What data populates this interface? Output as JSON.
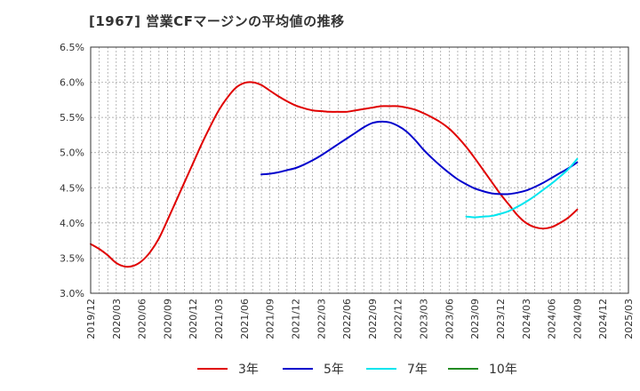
{
  "title": "[1967]  営業CFマージンの平均値の推移",
  "chart_data": {
    "type": "line",
    "title": "[1967]  営業CFマージンの平均値の推移",
    "xlabel": "",
    "ylabel": "",
    "x_ticks": [
      "2019/12",
      "2020/03",
      "2020/06",
      "2020/09",
      "2020/12",
      "2021/03",
      "2021/06",
      "2021/09",
      "2021/12",
      "2022/03",
      "2022/06",
      "2022/09",
      "2022/12",
      "2023/03",
      "2023/06",
      "2023/09",
      "2023/12",
      "2024/03",
      "2024/06",
      "2024/09",
      "2024/12",
      "2025/03"
    ],
    "y_ticks": [
      "3.0%",
      "3.5%",
      "4.0%",
      "4.5%",
      "5.0%",
      "5.5%",
      "6.0%",
      "6.5%"
    ],
    "ylim": [
      3.0,
      6.5
    ],
    "y_unit": "%",
    "grid": true,
    "legend_position": "bottom",
    "series": [
      {
        "name": "3年",
        "color": "#e00000",
        "points": [
          [
            "2019/12",
            3.7
          ],
          [
            "2020/01",
            3.63
          ],
          [
            "2020/02",
            3.54
          ],
          [
            "2020/03",
            3.43
          ],
          [
            "2020/04",
            3.38
          ],
          [
            "2020/05",
            3.39
          ],
          [
            "2020/06",
            3.46
          ],
          [
            "2020/07",
            3.59
          ],
          [
            "2020/08",
            3.78
          ],
          [
            "2020/09",
            4.04
          ],
          [
            "2020/10",
            4.31
          ],
          [
            "2020/11",
            4.58
          ],
          [
            "2020/12",
            4.85
          ],
          [
            "2021/01",
            5.12
          ],
          [
            "2021/02",
            5.37
          ],
          [
            "2021/03",
            5.6
          ],
          [
            "2021/04",
            5.78
          ],
          [
            "2021/05",
            5.92
          ],
          [
            "2021/06",
            5.99
          ],
          [
            "2021/07",
            6.0
          ],
          [
            "2021/08",
            5.96
          ],
          [
            "2021/09",
            5.88
          ],
          [
            "2021/10",
            5.8
          ],
          [
            "2021/11",
            5.73
          ],
          [
            "2021/12",
            5.67
          ],
          [
            "2022/01",
            5.63
          ],
          [
            "2022/02",
            5.6
          ],
          [
            "2022/03",
            5.59
          ],
          [
            "2022/04",
            5.58
          ],
          [
            "2022/05",
            5.58
          ],
          [
            "2022/06",
            5.58
          ],
          [
            "2022/07",
            5.6
          ],
          [
            "2022/08",
            5.62
          ],
          [
            "2022/09",
            5.64
          ],
          [
            "2022/10",
            5.66
          ],
          [
            "2022/11",
            5.66
          ],
          [
            "2022/12",
            5.66
          ],
          [
            "2023/01",
            5.64
          ],
          [
            "2023/02",
            5.61
          ],
          [
            "2023/03",
            5.56
          ],
          [
            "2023/04",
            5.5
          ],
          [
            "2023/05",
            5.43
          ],
          [
            "2023/06",
            5.34
          ],
          [
            "2023/07",
            5.22
          ],
          [
            "2023/08",
            5.08
          ],
          [
            "2023/09",
            4.92
          ],
          [
            "2023/10",
            4.75
          ],
          [
            "2023/11",
            4.58
          ],
          [
            "2023/12",
            4.41
          ],
          [
            "2024/01",
            4.26
          ],
          [
            "2024/02",
            4.11
          ],
          [
            "2024/03",
            4.0
          ],
          [
            "2024/04",
            3.94
          ],
          [
            "2024/05",
            3.92
          ],
          [
            "2024/06",
            3.94
          ],
          [
            "2024/07",
            4.0
          ],
          [
            "2024/08",
            4.08
          ],
          [
            "2024/09",
            4.19
          ]
        ]
      },
      {
        "name": "5年",
        "color": "#0000cc",
        "points": [
          [
            "2021/08",
            4.69
          ],
          [
            "2021/09",
            4.7
          ],
          [
            "2021/10",
            4.72
          ],
          [
            "2021/11",
            4.75
          ],
          [
            "2021/12",
            4.78
          ],
          [
            "2022/01",
            4.83
          ],
          [
            "2022/02",
            4.89
          ],
          [
            "2022/03",
            4.96
          ],
          [
            "2022/04",
            5.04
          ],
          [
            "2022/05",
            5.12
          ],
          [
            "2022/06",
            5.2
          ],
          [
            "2022/07",
            5.28
          ],
          [
            "2022/08",
            5.36
          ],
          [
            "2022/09",
            5.42
          ],
          [
            "2022/10",
            5.44
          ],
          [
            "2022/11",
            5.43
          ],
          [
            "2022/12",
            5.38
          ],
          [
            "2023/01",
            5.3
          ],
          [
            "2023/02",
            5.18
          ],
          [
            "2023/03",
            5.04
          ],
          [
            "2023/04",
            4.92
          ],
          [
            "2023/05",
            4.81
          ],
          [
            "2023/06",
            4.71
          ],
          [
            "2023/07",
            4.62
          ],
          [
            "2023/08",
            4.55
          ],
          [
            "2023/09",
            4.49
          ],
          [
            "2023/10",
            4.45
          ],
          [
            "2023/11",
            4.42
          ],
          [
            "2023/12",
            4.41
          ],
          [
            "2024/01",
            4.41
          ],
          [
            "2024/02",
            4.43
          ],
          [
            "2024/03",
            4.46
          ],
          [
            "2024/04",
            4.51
          ],
          [
            "2024/05",
            4.57
          ],
          [
            "2024/06",
            4.64
          ],
          [
            "2024/07",
            4.71
          ],
          [
            "2024/08",
            4.78
          ],
          [
            "2024/09",
            4.86
          ]
        ]
      },
      {
        "name": "7年",
        "color": "#00e5ee",
        "points": [
          [
            "2023/08",
            4.09
          ],
          [
            "2023/09",
            4.08
          ],
          [
            "2023/10",
            4.09
          ],
          [
            "2023/11",
            4.1
          ],
          [
            "2023/12",
            4.13
          ],
          [
            "2024/01",
            4.17
          ],
          [
            "2024/02",
            4.23
          ],
          [
            "2024/03",
            4.3
          ],
          [
            "2024/04",
            4.38
          ],
          [
            "2024/05",
            4.47
          ],
          [
            "2024/06",
            4.56
          ],
          [
            "2024/07",
            4.66
          ],
          [
            "2024/08",
            4.77
          ],
          [
            "2024/09",
            4.91
          ]
        ]
      },
      {
        "name": "10年",
        "color": "#228b22",
        "points": []
      }
    ]
  }
}
